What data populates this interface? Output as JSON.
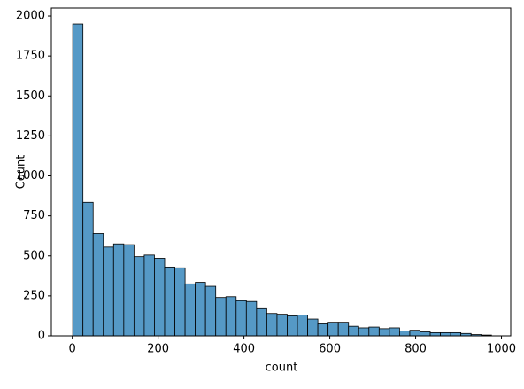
{
  "chart_data": {
    "type": "histogram",
    "xlabel": "count",
    "ylabel": "Count",
    "bins": [
      1,
      24.8,
      48.6,
      72.4,
      96.2,
      120,
      143.8,
      167.6,
      191.4,
      215.2,
      239,
      262.8,
      286.6,
      310.4,
      334.2,
      358,
      381.8,
      405.6,
      429.4,
      453.2,
      477,
      500.8,
      524.6,
      548.4,
      572.2,
      596,
      619.8,
      643.6,
      667.4,
      691.2,
      715,
      738.8,
      762.6,
      786.4,
      810.2,
      834,
      857.8,
      881.6,
      905.4,
      929.2,
      953,
      976.8
    ],
    "values": [
      1950,
      835,
      640,
      555,
      575,
      570,
      495,
      505,
      485,
      430,
      425,
      325,
      335,
      310,
      240,
      245,
      220,
      215,
      170,
      140,
      135,
      125,
      130,
      105,
      75,
      85,
      85,
      60,
      50,
      55,
      45,
      50,
      30,
      35,
      25,
      20,
      20,
      20,
      15,
      8,
      5
    ],
    "color": "#5599c6",
    "xlim": [
      -48.8,
      1021.6
    ],
    "xticks": [
      0,
      200,
      400,
      600,
      800,
      1000
    ],
    "ylim": [
      0,
      2050
    ],
    "yticks": [
      0,
      250,
      500,
      750,
      1000,
      1250,
      1500,
      1750,
      2000
    ]
  }
}
